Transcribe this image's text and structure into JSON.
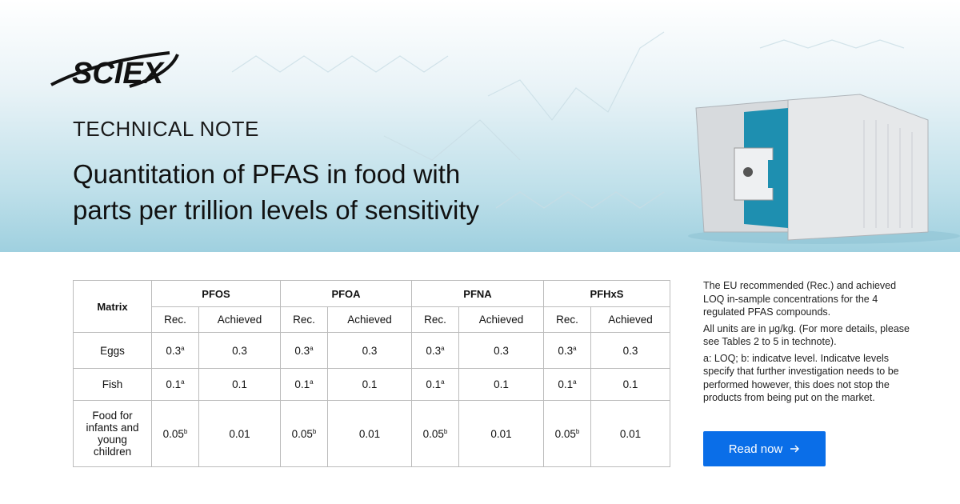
{
  "header": {
    "logo": "SCIEX",
    "label": "TECHNICAL NOTE",
    "title": [
      "Quantitation of PFAS in food with",
      "parts per trillion levels of sensitivity"
    ]
  },
  "table": {
    "corner": "Matrix",
    "compounds": [
      "PFOS",
      "PFOA",
      "PFNA",
      "PFHxS"
    ],
    "subheaders": [
      "Rec.",
      "Achieved"
    ],
    "rows": [
      {
        "matrix": "Eggs",
        "cells": [
          {
            "text": "0.3",
            "sup": "a"
          },
          "0.3",
          {
            "text": "0.3",
            "sup": "a"
          },
          "0.3",
          {
            "text": "0.3",
            "sup": "a"
          },
          "0.3",
          {
            "text": "0.3",
            "sup": "a"
          },
          "0.3"
        ]
      },
      {
        "matrix": "Fish",
        "cells": [
          {
            "text": "0.1",
            "sup": "a"
          },
          "0.1",
          {
            "text": "0.1",
            "sup": "a"
          },
          "0.1",
          {
            "text": "0.1",
            "sup": "a"
          },
          "0.1",
          {
            "text": "0.1",
            "sup": "a"
          },
          "0.1"
        ]
      },
      {
        "matrix": "Food for infants and young children",
        "cells": [
          {
            "text": "0.05",
            "sup": "b"
          },
          "0.01",
          {
            "text": "0.05",
            "sup": "b"
          },
          "0.01",
          {
            "text": "0.05",
            "sup": "b"
          },
          "0.01",
          {
            "text": "0.05",
            "sup": "b"
          },
          "0.01"
        ]
      }
    ]
  },
  "side": {
    "caption": "The EU recommended (Rec.) and achieved LOQ in-sample concentrations for the 4 regulated PFAS compounds.",
    "notes": [
      "All units are in μg/kg. (For more details, please see Tables 2 to 5 in technote).",
      "a: LOQ; b: indicatve level. Indicatve levels specify that further investigation needs to be performed however, this does not stop the products from being put on the market."
    ]
  },
  "button": "Read now"
}
